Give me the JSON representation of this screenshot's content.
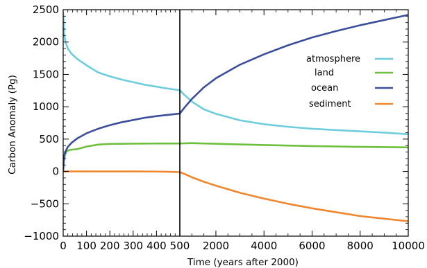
{
  "chart_data": {
    "type": "line",
    "title": "",
    "xlabel": "Time (years after 2000)",
    "ylabel": "Carbon Anomaly (Pg)",
    "ylim": [
      -1000,
      2500
    ],
    "yticks": [
      -1000,
      -500,
      0,
      500,
      1000,
      1500,
      2000,
      2500
    ],
    "x_axis_segments": [
      {
        "range": [
          0,
          500
        ],
        "ticks": [
          0,
          100,
          200,
          300,
          400,
          500
        ]
      },
      {
        "range": [
          500,
          10000
        ],
        "ticks": [
          2000,
          4000,
          6000,
          8000,
          10000
        ]
      }
    ],
    "x_break_value": 500,
    "grid": false,
    "legend_position": "right",
    "series": [
      {
        "name": "atmosphere",
        "color": "#6ccddc",
        "x": [
          0,
          2,
          5,
          10,
          20,
          35,
          60,
          100,
          150,
          200,
          250,
          300,
          350,
          400,
          450,
          500,
          700,
          1000,
          1500,
          2000,
          3000,
          4000,
          5000,
          6000,
          7000,
          8000,
          9000,
          10000
        ],
        "y": [
          2450,
          2250,
          2100,
          2000,
          1900,
          1820,
          1740,
          1640,
          1530,
          1470,
          1420,
          1380,
          1340,
          1310,
          1280,
          1255,
          1180,
          1080,
          960,
          890,
          790,
          730,
          690,
          660,
          640,
          620,
          600,
          575
        ]
      },
      {
        "name": "land",
        "color": "#6dbf3d",
        "x": [
          0,
          3,
          8,
          15,
          25,
          40,
          60,
          80,
          100,
          150,
          200,
          300,
          400,
          500,
          1000,
          1500,
          2000,
          3000,
          4000,
          5000,
          6000,
          7000,
          8000,
          9000,
          10000
        ],
        "y": [
          0,
          150,
          260,
          310,
          330,
          338,
          345,
          365,
          385,
          415,
          425,
          430,
          432,
          432,
          438,
          432,
          428,
          418,
          408,
          400,
          392,
          386,
          380,
          376,
          372
        ]
      },
      {
        "name": "ocean",
        "color": "#3a4e9c",
        "x": [
          0,
          2,
          5,
          10,
          20,
          35,
          60,
          100,
          150,
          200,
          250,
          300,
          350,
          400,
          450,
          500,
          700,
          1000,
          1500,
          2000,
          3000,
          4000,
          5000,
          6000,
          7000,
          8000,
          9000,
          10000
        ],
        "y": [
          0,
          150,
          250,
          310,
          380,
          440,
          510,
          590,
          660,
          715,
          760,
          795,
          830,
          855,
          875,
          895,
          990,
          1120,
          1300,
          1440,
          1650,
          1810,
          1950,
          2070,
          2170,
          2260,
          2340,
          2420
        ]
      },
      {
        "name": "sediment",
        "color": "#f0862d",
        "x": [
          0,
          100,
          200,
          300,
          400,
          450,
          500,
          700,
          1000,
          1500,
          2000,
          3000,
          4000,
          5000,
          6000,
          7000,
          8000,
          9000,
          10000
        ],
        "y": [
          0,
          0,
          0,
          0,
          -2,
          -5,
          -10,
          -40,
          -90,
          -160,
          -220,
          -330,
          -420,
          -500,
          -570,
          -630,
          -690,
          -730,
          -770
        ]
      }
    ]
  }
}
